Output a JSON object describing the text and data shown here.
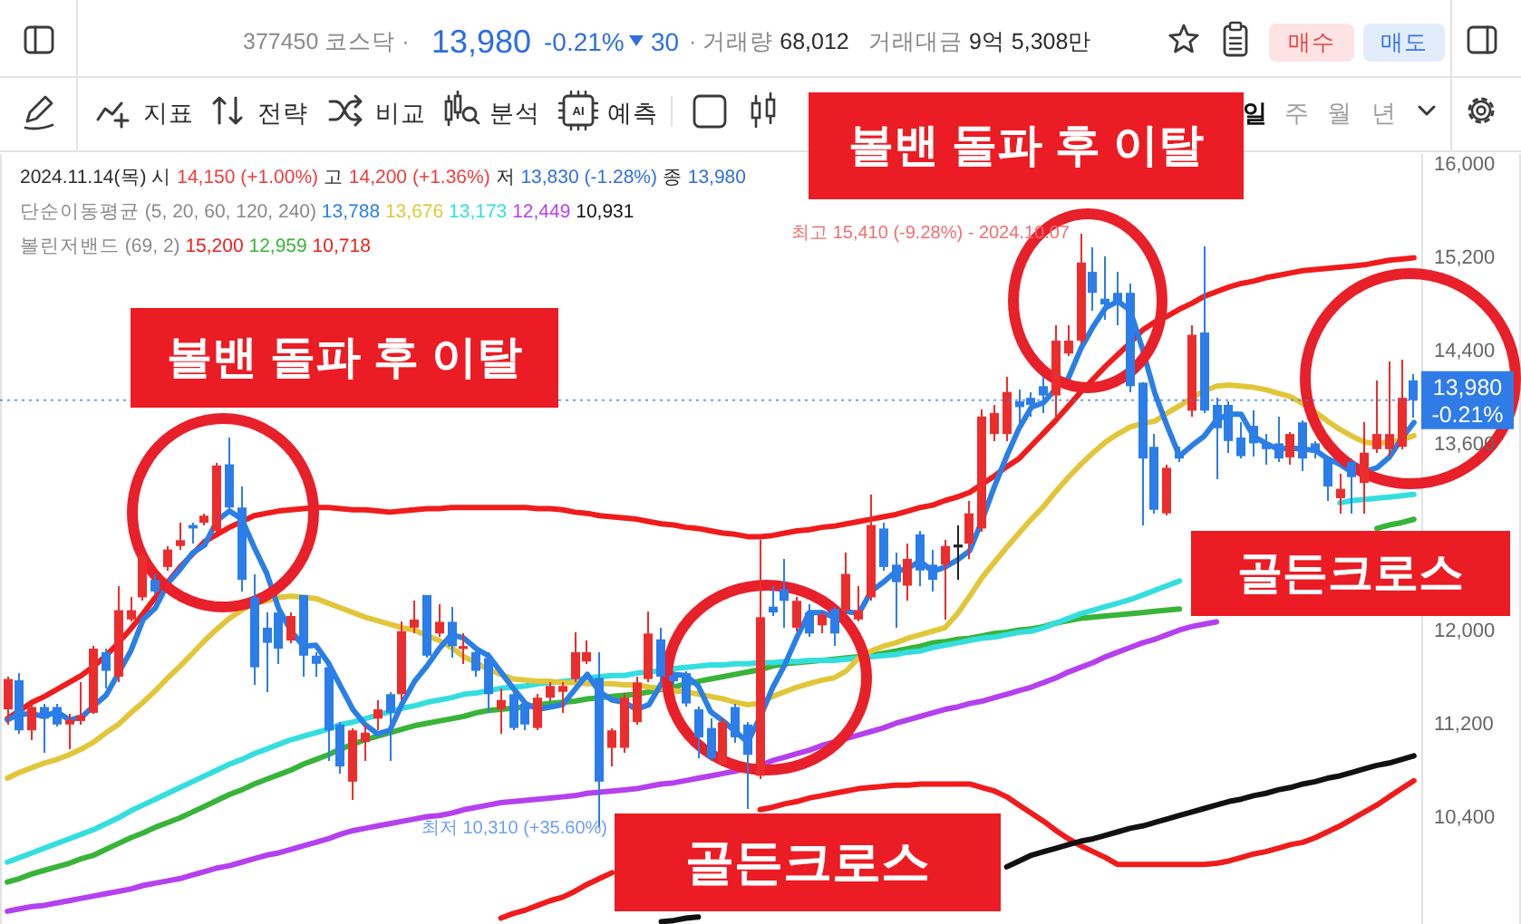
{
  "chart_data": {
    "type": "candlestick",
    "categories": [
      null,
      null,
      null,
      null,
      null,
      null,
      null,
      null,
      null,
      null,
      null,
      null,
      null,
      null,
      null,
      null,
      null,
      null,
      null,
      null,
      null,
      null,
      null,
      null,
      null,
      null,
      null,
      null,
      null,
      null,
      null,
      null,
      null,
      null,
      null,
      null,
      null,
      null,
      null,
      null,
      null,
      null,
      null,
      null,
      null,
      null,
      null,
      null,
      null,
      null,
      null,
      null,
      null,
      null,
      null,
      null,
      null,
      null,
      null,
      null,
      null,
      null,
      null,
      null,
      null,
      null,
      null,
      null,
      null,
      null,
      null,
      null,
      null,
      null,
      null,
      null,
      null,
      null,
      null,
      null,
      null,
      null,
      null,
      null,
      null,
      null,
      null,
      null,
      null,
      null,
      null,
      null,
      null,
      null,
      null,
      null,
      null,
      null,
      null,
      null,
      null,
      null,
      null,
      null,
      null,
      null,
      null,
      null,
      null,
      null,
      null,
      null,
      null,
      null,
      null
    ],
    "ohlc": [
      [
        11330,
        11610,
        11200,
        11590
      ],
      [
        11580,
        11640,
        11120,
        11150
      ],
      [
        11150,
        11380,
        11070,
        11350
      ],
      [
        11350,
        11380,
        10960,
        11250
      ],
      [
        11350,
        11380,
        11180,
        11200
      ],
      [
        11200,
        11290,
        10990,
        11240
      ],
      [
        11230,
        11560,
        11200,
        11280
      ],
      [
        11300,
        11870,
        11290,
        11850
      ],
      [
        11820,
        11850,
        11510,
        11660
      ],
      [
        11610,
        12390,
        11560,
        12180
      ],
      [
        12100,
        12290,
        12080,
        12180
      ],
      [
        12290,
        12670,
        12260,
        12650
      ],
      [
        12440,
        12490,
        12310,
        12340
      ],
      [
        12550,
        12730,
        12520,
        12700
      ],
      [
        12730,
        12930,
        12700,
        12780
      ],
      [
        12910,
        12930,
        12750,
        12880
      ],
      [
        12930,
        13010,
        12910,
        12990
      ],
      [
        12860,
        13440,
        12850,
        13420
      ],
      [
        13430,
        13660,
        13050,
        13060
      ],
      [
        13060,
        13240,
        12340,
        12440
      ],
      [
        12290,
        12490,
        11540,
        11690
      ],
      [
        12030,
        12160,
        11480,
        11900
      ],
      [
        12160,
        12230,
        11720,
        11850
      ],
      [
        11920,
        12160,
        11900,
        12130
      ],
      [
        12310,
        12310,
        11610,
        11790
      ],
      [
        11790,
        11820,
        11610,
        11720
      ],
      [
        11690,
        11720,
        10890,
        11150
      ],
      [
        11200,
        11220,
        10780,
        10840
      ],
      [
        10710,
        11170,
        10550,
        11150
      ],
      [
        11050,
        11200,
        10890,
        11130
      ],
      [
        11250,
        11410,
        11150,
        11330
      ],
      [
        11460,
        11480,
        10890,
        11300
      ],
      [
        11460,
        12080,
        11410,
        12000
      ],
      [
        12030,
        12260,
        11980,
        12100
      ],
      [
        12310,
        12310,
        11770,
        11790
      ],
      [
        11980,
        12230,
        11950,
        12080
      ],
      [
        12080,
        12210,
        11770,
        11870
      ],
      [
        11850,
        11980,
        11720,
        11870
      ],
      [
        11820,
        11870,
        11610,
        11660
      ],
      [
        11770,
        11820,
        11300,
        11460
      ],
      [
        11330,
        11510,
        11120,
        11410
      ],
      [
        11460,
        11480,
        11150,
        11170
      ],
      [
        11380,
        11410,
        11150,
        11200
      ],
      [
        11170,
        11460,
        11150,
        11430
      ],
      [
        11430,
        11560,
        11400,
        11530
      ],
      [
        11480,
        11560,
        11300,
        11530
      ],
      [
        11590,
        11990,
        11560,
        11820
      ],
      [
        11740,
        11920,
        11720,
        11820
      ],
      [
        11600,
        11820,
        10310,
        10710
      ],
      [
        11000,
        11170,
        10840,
        11150
      ],
      [
        11000,
        11470,
        10960,
        11430
      ],
      [
        11220,
        11610,
        11200,
        11560
      ],
      [
        11590,
        12170,
        11560,
        11980
      ],
      [
        11930,
        12030,
        11560,
        11610
      ],
      [
        11620,
        11660,
        11540,
        11570
      ],
      [
        11640,
        11660,
        11350,
        11380
      ],
      [
        11330,
        11350,
        10910,
        11090
      ],
      [
        11170,
        11250,
        10890,
        10910
      ],
      [
        10860,
        11250,
        10840,
        11220
      ],
      [
        11350,
        11380,
        11040,
        11090
      ],
      [
        11200,
        11220,
        10480,
        10940
      ],
      [
        10760,
        12780,
        10730,
        12120
      ],
      [
        12210,
        12390,
        12130,
        12160
      ],
      [
        12360,
        12620,
        12030,
        12260
      ],
      [
        12030,
        12290,
        12000,
        12260
      ],
      [
        12160,
        12230,
        11950,
        11980
      ],
      [
        12050,
        12160,
        11980,
        12140
      ],
      [
        12190,
        12210,
        11870,
        11980
      ],
      [
        12180,
        12670,
        12130,
        12490
      ],
      [
        12100,
        12390,
        12080,
        12180
      ],
      [
        12290,
        13170,
        12260,
        12910
      ],
      [
        12880,
        12930,
        12520,
        12550
      ],
      [
        12570,
        12670,
        12030,
        12420
      ],
      [
        12390,
        12750,
        12260,
        12620
      ],
      [
        12830,
        12860,
        12390,
        12520
      ],
      [
        12570,
        12700,
        12340,
        12440
      ],
      [
        12570,
        12780,
        12100,
        12730
      ],
      [
        12730,
        12910,
        12440,
        12730
      ],
      [
        12750,
        13120,
        12620,
        13010
      ],
      [
        12880,
        13900,
        12850,
        13840
      ],
      [
        13690,
        13940,
        13630,
        13870
      ],
      [
        13690,
        14180,
        13630,
        14050
      ],
      [
        13970,
        14070,
        13740,
        13920
      ],
      [
        14000,
        14050,
        13840,
        13940
      ],
      [
        14100,
        14180,
        13870,
        14020
      ],
      [
        14020,
        14620,
        13840,
        14490
      ],
      [
        14380,
        14620,
        14360,
        14490
      ],
      [
        14490,
        15410,
        14460,
        15160
      ],
      [
        15080,
        15290,
        14750,
        14900
      ],
      [
        14850,
        15210,
        14670,
        14800
      ],
      [
        14900,
        15080,
        14620,
        14800
      ],
      [
        14900,
        14980,
        14050,
        14100
      ],
      [
        14130,
        14130,
        12910,
        13480
      ],
      [
        13580,
        13690,
        13010,
        13040
      ],
      [
        13010,
        13430,
        12990,
        13400
      ],
      [
        13530,
        13580,
        13450,
        13480
      ],
      [
        13890,
        14620,
        13840,
        14540
      ],
      [
        14560,
        15300,
        13870,
        13890
      ],
      [
        13940,
        14000,
        13300,
        13740
      ],
      [
        13940,
        13970,
        13530,
        13630
      ],
      [
        13660,
        13790,
        13480,
        13500
      ],
      [
        13760,
        13890,
        13500,
        13610
      ],
      [
        13610,
        13690,
        13430,
        13560
      ],
      [
        13610,
        13840,
        13450,
        13480
      ],
      [
        13490,
        13710,
        13430,
        13690
      ],
      [
        13790,
        13810,
        13370,
        13480
      ],
      [
        13610,
        13630,
        13480,
        13530
      ],
      [
        13480,
        13500,
        13120,
        13240
      ],
      [
        13140,
        13350,
        13010,
        13220
      ],
      [
        13450,
        13480,
        13010,
        13320
      ],
      [
        13270,
        13790,
        13010,
        13530
      ],
      [
        13560,
        14150,
        13530,
        13690
      ],
      [
        13560,
        14310,
        13500,
        13690
      ],
      [
        13580,
        14330,
        13560,
        14000
      ],
      [
        14150,
        14200,
        13830,
        13980
      ]
    ],
    "colors": [
      "#ec2d2d",
      "#2b7de9",
      "#ec2d2d",
      "#2b7de9",
      "#2b7de9",
      "#ec2d2d",
      "#ec2d2d",
      "#ec2d2d",
      "#2b7de9",
      "#ec2d2d",
      "#ec2d2d",
      "#ec2d2d",
      "#2b7de9",
      "#ec2d2d",
      "#ec2d2d",
      "#2b7de9",
      "#ec2d2d",
      "#ec2d2d",
      "#2b7de9",
      "#2b7de9",
      "#2b7de9",
      "#2b7de9",
      "#2b7de9",
      "#ec2d2d",
      "#2b7de9",
      "#2b7de9",
      "#2b7de9",
      "#2b7de9",
      "#ec2d2d",
      "#ec2d2d",
      "#ec2d2d",
      "#2b7de9",
      "#ec2d2d",
      "#ec2d2d",
      "#2b7de9",
      "#ec2d2d",
      "#2b7de9",
      "#ec2d2d",
      "#2b7de9",
      "#2b7de9",
      "#ec2d2d",
      "#2b7de9",
      "#2b7de9",
      "#ec2d2d",
      "#ec2d2d",
      "#ec2d2d",
      "#ec2d2d",
      "#ec2d2d",
      "#2b7de9",
      "#ec2d2d",
      "#ec2d2d",
      "#ec2d2d",
      "#ec2d2d",
      "#2b7de9",
      "#2b7de9",
      "#2b7de9",
      "#2b7de9",
      "#2b7de9",
      "#ec2d2d",
      "#2b7de9",
      "#2b7de9",
      "#ec2d2d",
      "#2b7de9",
      "#2b7de9",
      "#ec2d2d",
      "#2b7de9",
      "#ec2d2d",
      "#2b7de9",
      "#ec2d2d",
      "#ec2d2d",
      "#ec2d2d",
      "#2b7de9",
      "#2b7de9",
      "#ec2d2d",
      "#2b7de9",
      "#2b7de9",
      "#ec2d2d",
      "#222222",
      "#ec2d2d",
      "#ec2d2d",
      "#ec2d2d",
      "#ec2d2d",
      "#2b7de9",
      "#2b7de9",
      "#2b7de9",
      "#ec2d2d",
      "#ec2d2d",
      "#ec2d2d",
      "#2b7de9",
      "#2b7de9",
      "#2b7de9",
      "#2b7de9",
      "#2b7de9",
      "#2b7de9",
      "#ec2d2d",
      "#2b7de9",
      "#ec2d2d",
      "#2b7de9",
      "#2b7de9",
      "#2b7de9",
      "#2b7de9",
      "#2b7de9",
      "#2b7de9",
      "#2b7de9",
      "#ec2d2d",
      "#2b7de9",
      "#2b7de9",
      "#2b7de9",
      "#ec2d2d",
      "#2b7de9",
      "#ec2d2d",
      "#ec2d2d",
      "#ec2d2d",
      "#ec2d2d",
      "#2b7de9"
    ],
    "series": [
      {
        "type": "line",
        "color": "#2a7fe6",
        "values": [
          11240,
          11290,
          11290,
          11270,
          11310,
          11240,
          11260,
          11360,
          11450,
          11640,
          11830,
          12100,
          12200,
          12410,
          12530,
          12670,
          12740,
          12950,
          13030,
          12960,
          12720,
          12500,
          12190,
          12000,
          11870,
          11880,
          11730,
          11530,
          11330,
          11200,
          11120,
          11150,
          11380,
          11570,
          11700,
          11850,
          11970,
          11940,
          11850,
          11790,
          11650,
          11510,
          11380,
          11330,
          11350,
          11370,
          11500,
          11630,
          11480,
          11410,
          11390,
          11330,
          11370,
          11550,
          11630,
          11620,
          11530,
          11310,
          11230,
          11140,
          11050,
          11260,
          11510,
          11710,
          11950,
          12160,
          12160,
          12120,
          12170,
          12150,
          12340,
          12420,
          12510,
          12540,
          12600,
          12510,
          12550,
          12610,
          12690,
          12950,
          13240,
          13500,
          13740,
          13920,
          13960,
          14080,
          14170,
          14420,
          14610,
          14770,
          14830,
          14750,
          14420,
          14040,
          13760,
          13500,
          13590,
          13670,
          13810,
          13860,
          13860,
          13670,
          13610,
          13560,
          13570,
          13560,
          13550,
          13480,
          13430,
          13360,
          13370,
          13400,
          13490,
          13650,
          13788
        ]
      },
      {
        "type": "line",
        "color": "#e2c63a",
        "values": [
          10740,
          10790,
          10830,
          10870,
          10900,
          10940,
          10990,
          11050,
          11130,
          11200,
          11300,
          11390,
          11490,
          11600,
          11700,
          11810,
          11920,
          12020,
          12110,
          12180,
          12240,
          12260,
          12290,
          12300,
          12290,
          12280,
          12240,
          12200,
          12160,
          12120,
          12090,
          12060,
          12030,
          12010,
          11960,
          11920,
          11860,
          11780,
          11730,
          11670,
          11630,
          11590,
          11580,
          11570,
          11570,
          11560,
          11560,
          11550,
          11550,
          11550,
          11540,
          11540,
          11520,
          11510,
          11490,
          11480,
          11460,
          11440,
          11420,
          11390,
          11370,
          11380,
          11440,
          11480,
          11520,
          11550,
          11580,
          11600,
          11660,
          11770,
          11830,
          11870,
          11900,
          11940,
          11970,
          12000,
          12030,
          12150,
          12300,
          12460,
          12590,
          12720,
          12840,
          12960,
          13070,
          13200,
          13320,
          13430,
          13530,
          13620,
          13690,
          13750,
          13780,
          13800,
          13870,
          13930,
          14000,
          14060,
          14100,
          14110,
          14100,
          14090,
          14070,
          14040,
          14010,
          13950,
          13880,
          13800,
          13730,
          13670,
          13620,
          13610,
          13620,
          13640,
          13676
        ]
      },
      {
        "type": "line",
        "color": "#34dede",
        "values": [
          10020,
          10060,
          10100,
          10140,
          10180,
          10220,
          10260,
          10300,
          10350,
          10400,
          10460,
          10510,
          10560,
          10610,
          10660,
          10710,
          10760,
          10810,
          10860,
          10900,
          10950,
          10990,
          11030,
          11070,
          11100,
          11130,
          11160,
          11200,
          11220,
          11250,
          11280,
          11310,
          11340,
          11360,
          11390,
          11410,
          11430,
          11460,
          11470,
          11490,
          11510,
          11520,
          11530,
          11550,
          11560,
          11570,
          11580,
          11600,
          11610,
          11620,
          11620,
          11640,
          11650,
          11660,
          11680,
          11690,
          11700,
          11710,
          11710,
          11720,
          11720,
          11730,
          11730,
          11740,
          11740,
          11750,
          11750,
          11750,
          11760,
          11770,
          11780,
          11790,
          11800,
          11820,
          11830,
          11860,
          11880,
          11900,
          11920,
          11940,
          11950,
          11970,
          11990,
          12000,
          12030,
          12070,
          12110,
          12150,
          12180,
          12210,
          12240,
          12270,
          12310,
          12350,
          12390,
          12430,
          null,
          null,
          null,
          null,
          null,
          null,
          null,
          null,
          null,
          null,
          null,
          null,
          13100,
          13120,
          13130,
          13140,
          13150,
          13160,
          13173
        ]
      },
      {
        "type": "line",
        "color": "#b540ef",
        "values": [
          9600,
          9620,
          9640,
          9650,
          9670,
          9690,
          9710,
          9730,
          9750,
          9770,
          9790,
          9820,
          9840,
          9860,
          9880,
          9910,
          9940,
          9970,
          9990,
          10020,
          10050,
          10080,
          10100,
          10130,
          10160,
          10190,
          10220,
          10260,
          10290,
          10310,
          10330,
          10350,
          10370,
          10390,
          10410,
          10420,
          10440,
          10470,
          10490,
          10510,
          10530,
          10540,
          10550,
          10560,
          10570,
          10580,
          10590,
          10610,
          10620,
          10630,
          10640,
          10650,
          10670,
          10690,
          10700,
          10720,
          10740,
          10760,
          10780,
          10800,
          10830,
          10850,
          10890,
          10920,
          10950,
          10980,
          11020,
          11050,
          11080,
          11110,
          11140,
          11170,
          11210,
          11240,
          11270,
          11300,
          11330,
          11350,
          11380,
          11400,
          11430,
          11460,
          11490,
          11520,
          11560,
          11600,
          11650,
          11690,
          11730,
          11780,
          11820,
          11860,
          11900,
          11930,
          11970,
          12010,
          12040,
          12060,
          12080,
          null,
          null,
          null,
          null,
          null,
          null,
          null,
          null,
          null,
          null,
          null,
          null,
          null,
          null,
          null,
          null
        ]
      },
      {
        "type": "line",
        "color": "#111111",
        "values": [
          null,
          null,
          null,
          null,
          null,
          null,
          null,
          null,
          null,
          null,
          null,
          null,
          null,
          null,
          null,
          null,
          null,
          null,
          null,
          null,
          null,
          null,
          null,
          null,
          null,
          null,
          null,
          null,
          null,
          null,
          null,
          null,
          null,
          null,
          null,
          null,
          null,
          null,
          null,
          null,
          null,
          null,
          null,
          null,
          null,
          null,
          null,
          null,
          null,
          null,
          null,
          null,
          null,
          9510,
          9520,
          9540,
          9550,
          null,
          null,
          null,
          null,
          null,
          null,
          null,
          null,
          null,
          null,
          null,
          null,
          null,
          null,
          null,
          null,
          null,
          null,
          null,
          null,
          null,
          null,
          null,
          null,
          9980,
          10030,
          10080,
          10110,
          10140,
          10170,
          10200,
          10220,
          10250,
          10280,
          10310,
          10330,
          10360,
          10390,
          10420,
          10450,
          10480,
          10510,
          10540,
          10560,
          10590,
          10610,
          10640,
          10660,
          10690,
          10710,
          10740,
          10760,
          10790,
          10820,
          10850,
          10870,
          10900,
          10931
        ]
      },
      {
        "type": "line",
        "color": "#f01c1c",
        "values": [
          11250,
          11320,
          11390,
          11440,
          11500,
          11560,
          11620,
          11700,
          11790,
          11900,
          12020,
          12150,
          12290,
          12420,
          12550,
          12660,
          12770,
          12830,
          12890,
          12940,
          12990,
          13010,
          13030,
          13040,
          13050,
          13060,
          13060,
          13050,
          13040,
          13040,
          13030,
          13020,
          13030,
          13040,
          13050,
          13050,
          13060,
          13060,
          13060,
          13060,
          13060,
          13060,
          13060,
          13050,
          13050,
          13040,
          13020,
          13010,
          12990,
          12980,
          12970,
          12960,
          12940,
          12920,
          12910,
          12890,
          12880,
          12860,
          12840,
          12830,
          12810,
          12810,
          12820,
          12840,
          12860,
          12870,
          12890,
          12900,
          12920,
          12940,
          12960,
          12980,
          13000,
          13030,
          13060,
          13080,
          13120,
          13150,
          13190,
          13260,
          13330,
          13410,
          13480,
          13590,
          13700,
          13810,
          13930,
          14050,
          14160,
          14270,
          14370,
          14470,
          14580,
          14650,
          14700,
          14760,
          14810,
          14870,
          14910,
          14950,
          14980,
          15000,
          15030,
          15050,
          15070,
          15090,
          15100,
          15110,
          15120,
          15130,
          15140,
          15160,
          15180,
          15190,
          15200
        ]
      },
      {
        "type": "line",
        "color": "#38b438",
        "values": [
          9850,
          9880,
          9920,
          9950,
          9980,
          10010,
          10050,
          10080,
          10130,
          10180,
          10230,
          10270,
          10320,
          10360,
          10400,
          10450,
          10500,
          10550,
          10600,
          10640,
          10690,
          10730,
          10770,
          10810,
          10860,
          10900,
          10940,
          10990,
          11030,
          11070,
          11100,
          11130,
          11160,
          11190,
          11210,
          11230,
          11250,
          11270,
          11300,
          11320,
          11330,
          11340,
          11350,
          11370,
          11380,
          11390,
          11400,
          11420,
          11430,
          11440,
          11450,
          11460,
          11480,
          11500,
          11520,
          11550,
          11570,
          11590,
          11610,
          11630,
          11650,
          11670,
          11700,
          11720,
          11730,
          11740,
          11750,
          11760,
          11770,
          11780,
          11790,
          11810,
          11830,
          11850,
          11870,
          11900,
          11910,
          11930,
          11940,
          11960,
          11980,
          11990,
          12010,
          12020,
          12040,
          12070,
          12090,
          12110,
          12120,
          12130,
          12140,
          12150,
          12160,
          12170,
          12180,
          12190,
          null,
          null,
          null,
          null,
          null,
          null,
          null,
          null,
          null,
          null,
          null,
          null,
          null,
          null,
          null,
          12880,
          12910,
          12930,
          12959
        ]
      },
      {
        "type": "line",
        "color": "#f01c1c",
        "values": [
          null,
          null,
          null,
          null,
          null,
          null,
          null,
          null,
          null,
          null,
          null,
          null,
          null,
          null,
          null,
          null,
          null,
          null,
          null,
          null,
          null,
          null,
          null,
          null,
          null,
          null,
          null,
          null,
          null,
          null,
          null,
          null,
          null,
          null,
          null,
          null,
          null,
          null,
          null,
          null,
          9540,
          9580,
          9610,
          9650,
          9690,
          9720,
          9770,
          9830,
          9880,
          9930,
          null,
          null,
          null,
          null,
          null,
          null,
          null,
          null,
          null,
          null,
          null,
          10470,
          10490,
          10520,
          10540,
          10570,
          10590,
          10610,
          10630,
          10650,
          10660,
          10670,
          10680,
          10680,
          10690,
          10690,
          10690,
          10690,
          10690,
          10660,
          10630,
          10580,
          10510,
          10440,
          10370,
          10290,
          10220,
          10160,
          10110,
          10060,
          10000,
          10000,
          10000,
          10000,
          10000,
          10000,
          10000,
          10000,
          10010,
          10030,
          10060,
          10090,
          10110,
          10140,
          10170,
          10190,
          10230,
          10280,
          10330,
          10390,
          10450,
          10510,
          10580,
          10650,
          10718
        ]
      }
    ],
    "ylim": [
      9490,
      16090
    ],
    "yticks": [
      {
        "value": 10400,
        "label": "10,400"
      },
      {
        "value": 11200,
        "label": "11,200"
      },
      {
        "value": 12000,
        "label": "12,000"
      },
      {
        "value": 13600,
        "label": "13,600"
      },
      {
        "value": 14400,
        "label": "14,400"
      },
      {
        "value": 15200,
        "label": "15,200"
      },
      {
        "value": 16000,
        "label": "16,000"
      }
    ],
    "tick_labels": "y",
    "ref_lines": [
      {
        "axis": "y",
        "value": 13980,
        "label": "13,980\n-0.21%",
        "color": "#2f7be8",
        "line_style": "dotted"
      }
    ],
    "annotations": [
      "377450 코스닥 ·",
      "13,980",
      "-0.21%",
      "30",
      "· 거래량 68,012",
      "거래대금 9억 5,308만",
      "매수",
      "매도",
      "지표",
      "전략",
      "비교",
      "분석",
      "예측",
      "AI",
      "일",
      "주",
      "월",
      "년",
      "2024.11.14(목) 시 14,150 (+1.00%) 고 14,200 (+1.36%) 저 13,830 (-1.28%) 종 13,980",
      "단순이동평균 (5, 20, 60, 120, 240) 13,788 13,676 13,173 12,449 10,931",
      "볼린저밴드 (69, 2) 15,200 12,959 10,718",
      "최고 15,410 (-9.28%) - 2024.10.07",
      "최저 10,310 (+35.60%)",
      "볼밴 돌파 후 이탈",
      "볼밴 돌파 후 이탈",
      "골든크로스",
      "골든크로스"
    ]
  }
}
